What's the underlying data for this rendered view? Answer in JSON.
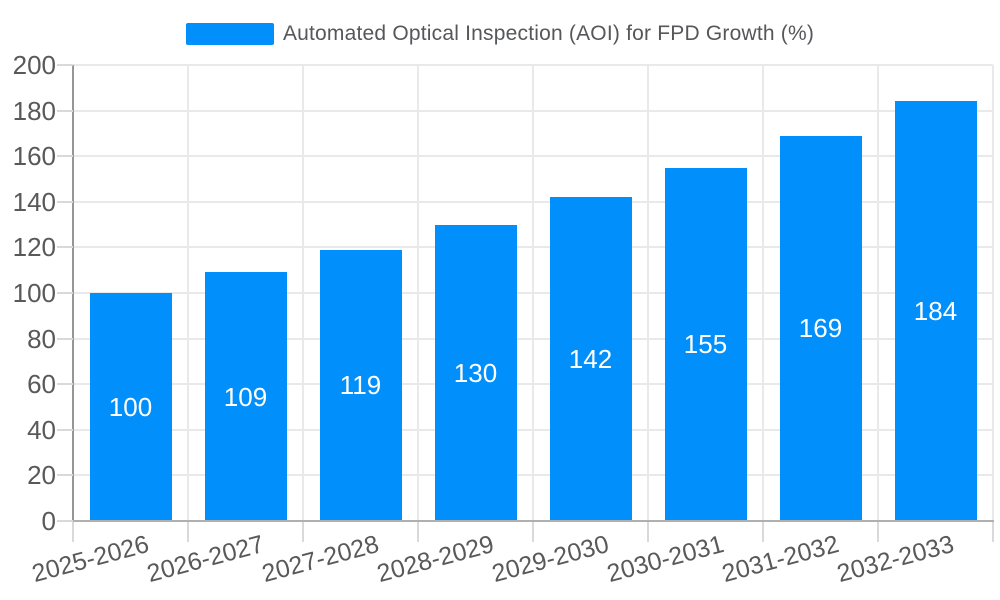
{
  "legend": {
    "label": "Automated Optical Inspection (AOI) for FPD Growth (%)"
  },
  "chart_data": {
    "type": "bar",
    "title": "Automated Optical Inspection (AOI) for FPD Growth (%)",
    "categories": [
      "2025-2026",
      "2026-2027",
      "2027-2028",
      "2028-2029",
      "2029-2030",
      "2030-2031",
      "2031-2032",
      "2032-2033"
    ],
    "values": [
      100,
      109,
      119,
      130,
      142,
      155,
      169,
      184
    ],
    "xlabel": "",
    "ylabel": "",
    "ylim": [
      0,
      200
    ],
    "ytick_step": 20,
    "y_tick_labels": [
      "0",
      "20",
      "40",
      "60",
      "80",
      "100",
      "120",
      "140",
      "160",
      "180",
      "200"
    ],
    "grid": "horizontal and vertical gridlines",
    "legend_position": "top-center",
    "value_labels": "white, centered inside bars"
  },
  "colors": {
    "bar": "#008FFB",
    "value_label": "#ffffff",
    "axis_label": "#595959",
    "legend_text": "#55575a",
    "gridline": "#e9e9e9",
    "tick": "#d9d9d9",
    "y_axis_line": "#969696",
    "x_axis_line": "#b0b0b0",
    "background": "#ffffff"
  }
}
